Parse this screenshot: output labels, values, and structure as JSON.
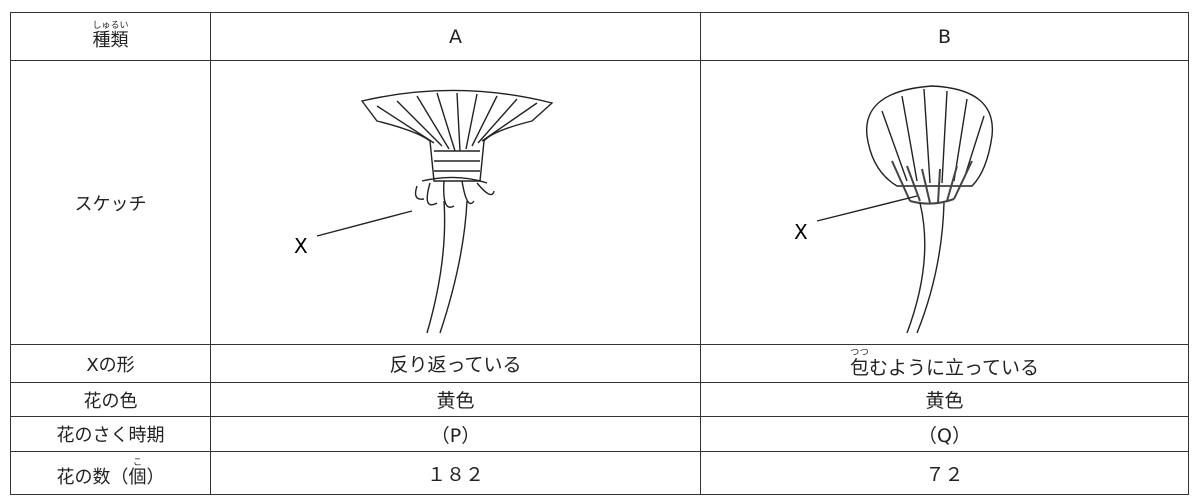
{
  "table": {
    "header": [
      {
        "base": "種類",
        "ruby": "しゅるい"
      },
      "A",
      "B"
    ],
    "sketch_row": {
      "label": "スケッチ",
      "pointer_labels": [
        "X",
        "X"
      ]
    },
    "rows": [
      [
        "Xの形",
        "反り返っている",
        [
          {
            "base": "包",
            "ruby": "つつ"
          },
          "むように立っている"
        ]
      ],
      [
        "花の色",
        "黄色",
        "黄色"
      ],
      [
        "花のさく時期",
        "（P）",
        "（Q）"
      ],
      [
        [
          "花の数（",
          {
            "base": "個",
            "ruby": "こ"
          },
          "）"
        ],
        "１８２",
        "７２"
      ]
    ]
  }
}
